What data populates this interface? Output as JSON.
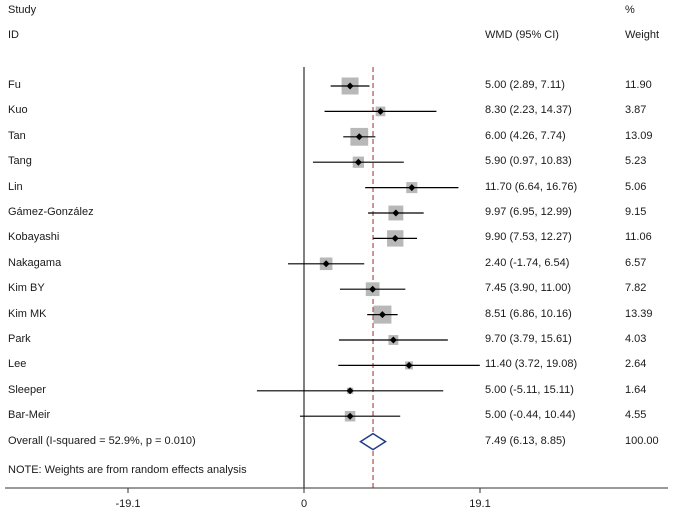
{
  "header": {
    "study_line1": "Study",
    "study_line2": "ID",
    "effect_label": "WMD (95% CI)",
    "weight_line1": "%",
    "weight_line2": "Weight"
  },
  "note": "NOTE: Weights are from random effects analysis",
  "chart_data": {
    "type": "forest",
    "xlabel": "",
    "x_ticks": [
      -19.1,
      0,
      19.1
    ],
    "x_tick_labels": [
      "-19.1",
      "0",
      "19.1"
    ],
    "xlim": [
      -24.3,
      24.3
    ],
    "null_line": 0,
    "overall_line": 7.49,
    "studies": [
      {
        "name": "Fu",
        "wmd": 5.0,
        "lo": 2.89,
        "hi": 7.11,
        "ci_text": "5.00 (2.89, 7.11)",
        "weight": 11.9,
        "weight_text": "11.90"
      },
      {
        "name": "Kuo",
        "wmd": 8.3,
        "lo": 2.23,
        "hi": 14.37,
        "ci_text": "8.30 (2.23, 14.37)",
        "weight": 3.87,
        "weight_text": "3.87"
      },
      {
        "name": "Tan",
        "wmd": 6.0,
        "lo": 4.26,
        "hi": 7.74,
        "ci_text": "6.00 (4.26, 7.74)",
        "weight": 13.09,
        "weight_text": "13.09"
      },
      {
        "name": "Tang",
        "wmd": 5.9,
        "lo": 0.97,
        "hi": 10.83,
        "ci_text": "5.90 (0.97, 10.83)",
        "weight": 5.23,
        "weight_text": "5.23"
      },
      {
        "name": "Lin",
        "wmd": 11.7,
        "lo": 6.64,
        "hi": 16.76,
        "ci_text": "11.70 (6.64, 16.76)",
        "weight": 5.06,
        "weight_text": "5.06"
      },
      {
        "name": "Gámez-González",
        "wmd": 9.97,
        "lo": 6.95,
        "hi": 12.99,
        "ci_text": "9.97 (6.95, 12.99)",
        "weight": 9.15,
        "weight_text": "9.15"
      },
      {
        "name": "Kobayashi",
        "wmd": 9.9,
        "lo": 7.53,
        "hi": 12.27,
        "ci_text": "9.90 (7.53, 12.27)",
        "weight": 11.06,
        "weight_text": "11.06"
      },
      {
        "name": "Nakagama",
        "wmd": 2.4,
        "lo": -1.74,
        "hi": 6.54,
        "ci_text": "2.40 (-1.74, 6.54)",
        "weight": 6.57,
        "weight_text": "6.57"
      },
      {
        "name": "Kim BY",
        "wmd": 7.45,
        "lo": 3.9,
        "hi": 11.0,
        "ci_text": "7.45 (3.90, 11.00)",
        "weight": 7.82,
        "weight_text": "7.82"
      },
      {
        "name": "Kim MK",
        "wmd": 8.51,
        "lo": 6.86,
        "hi": 10.16,
        "ci_text": "8.51 (6.86, 10.16)",
        "weight": 13.39,
        "weight_text": "13.39"
      },
      {
        "name": "Park",
        "wmd": 9.7,
        "lo": 3.79,
        "hi": 15.61,
        "ci_text": "9.70 (3.79, 15.61)",
        "weight": 4.03,
        "weight_text": "4.03"
      },
      {
        "name": "Lee",
        "wmd": 11.4,
        "lo": 3.72,
        "hi": 19.08,
        "ci_text": "11.40 (3.72, 19.08)",
        "weight": 2.64,
        "weight_text": "2.64"
      },
      {
        "name": "Sleeper",
        "wmd": 5.0,
        "lo": -5.11,
        "hi": 15.11,
        "ci_text": "5.00 (-5.11, 15.11)",
        "weight": 1.64,
        "weight_text": "1.64"
      },
      {
        "name": "Bar-Meir",
        "wmd": 5.0,
        "lo": -0.44,
        "hi": 10.44,
        "ci_text": "5.00 (-0.44, 10.44)",
        "weight": 4.55,
        "weight_text": "4.55"
      }
    ],
    "overall": {
      "label": "Overall  (I-squared = 52.9%, p = 0.010)",
      "wmd": 7.49,
      "lo": 6.13,
      "hi": 8.85,
      "ci_text": "7.49 (6.13, 8.85)",
      "weight_text": "100.00"
    },
    "colors": {
      "box": "#b8b8b8",
      "line": "#000000",
      "overall_line": "#a52a2a",
      "diamond": "#1f3c88",
      "axis": "#333333"
    }
  }
}
